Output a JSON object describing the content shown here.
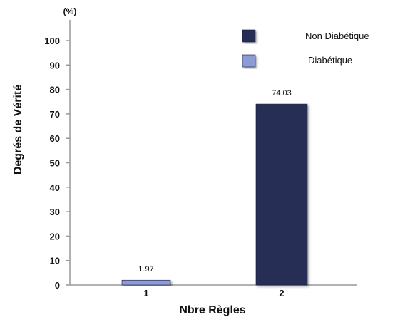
{
  "chart_data": {
    "type": "bar",
    "categories": [
      "1",
      "2"
    ],
    "series": [
      {
        "name": "Diabétique",
        "color": "#8c9bd6",
        "values": [
          1.97,
          null
        ]
      },
      {
        "name": "Non Diabétique",
        "color": "#262f55",
        "values": [
          null,
          74.03
        ]
      }
    ],
    "data_labels": [
      "1.97",
      "74.03"
    ],
    "xlabel": "Nbre Règles",
    "ylabel": "Degrés de Vérité",
    "y_unit": "(%)",
    "ylim": [
      0,
      100
    ],
    "yticks": [
      0,
      10,
      20,
      30,
      40,
      50,
      60,
      70,
      80,
      90,
      100
    ],
    "legend": {
      "position": "top-right",
      "entries": [
        {
          "label": "Non Diabétique",
          "color": "#262f55"
        },
        {
          "label": "Diabétique",
          "color": "#8c9bd6"
        }
      ]
    },
    "grid": false
  }
}
